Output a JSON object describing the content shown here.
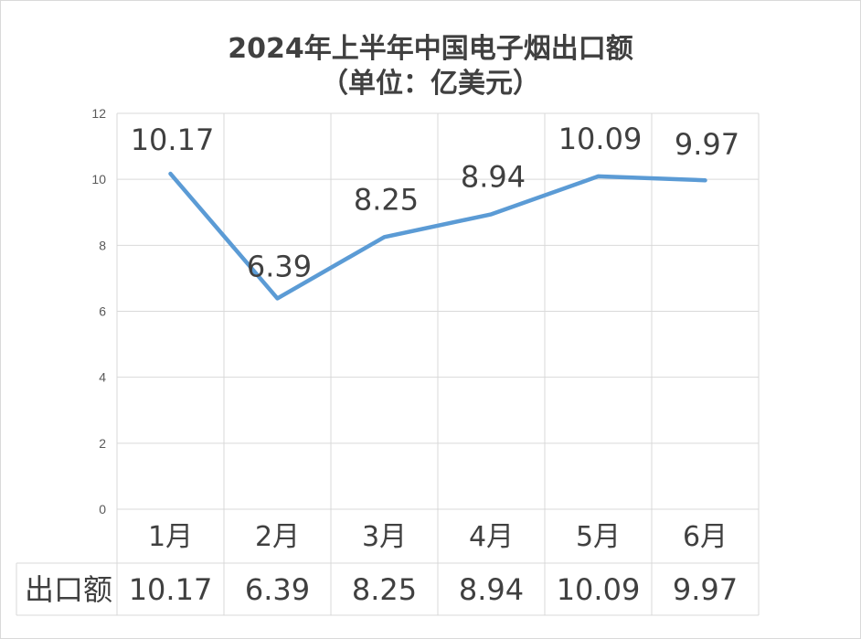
{
  "chart_data": {
    "type": "line",
    "title": "2024年上半年中国电子烟出口额",
    "subtitle": "（单位：亿美元）",
    "categories": [
      "1月",
      "2月",
      "3月",
      "4月",
      "5月",
      "6月"
    ],
    "series": [
      {
        "name": "出口额",
        "values": [
          10.17,
          6.39,
          8.25,
          8.94,
          10.09,
          9.97
        ]
      }
    ],
    "data_labels": [
      "10.17",
      "6.39",
      "8.25",
      "8.94",
      "10.09",
      "9.97"
    ],
    "table_values": [
      "10.17",
      "6.39",
      "8.25",
      "8.94",
      "10.09",
      "9.97"
    ],
    "ylim": [
      0,
      12
    ],
    "yticks": [
      0,
      2,
      4,
      6,
      8,
      10,
      12
    ],
    "xlabel": "",
    "ylabel": "",
    "grid": true,
    "legend": "data table",
    "line_color": "#5b9bd5",
    "grid_color": "#d9d9d9"
  }
}
